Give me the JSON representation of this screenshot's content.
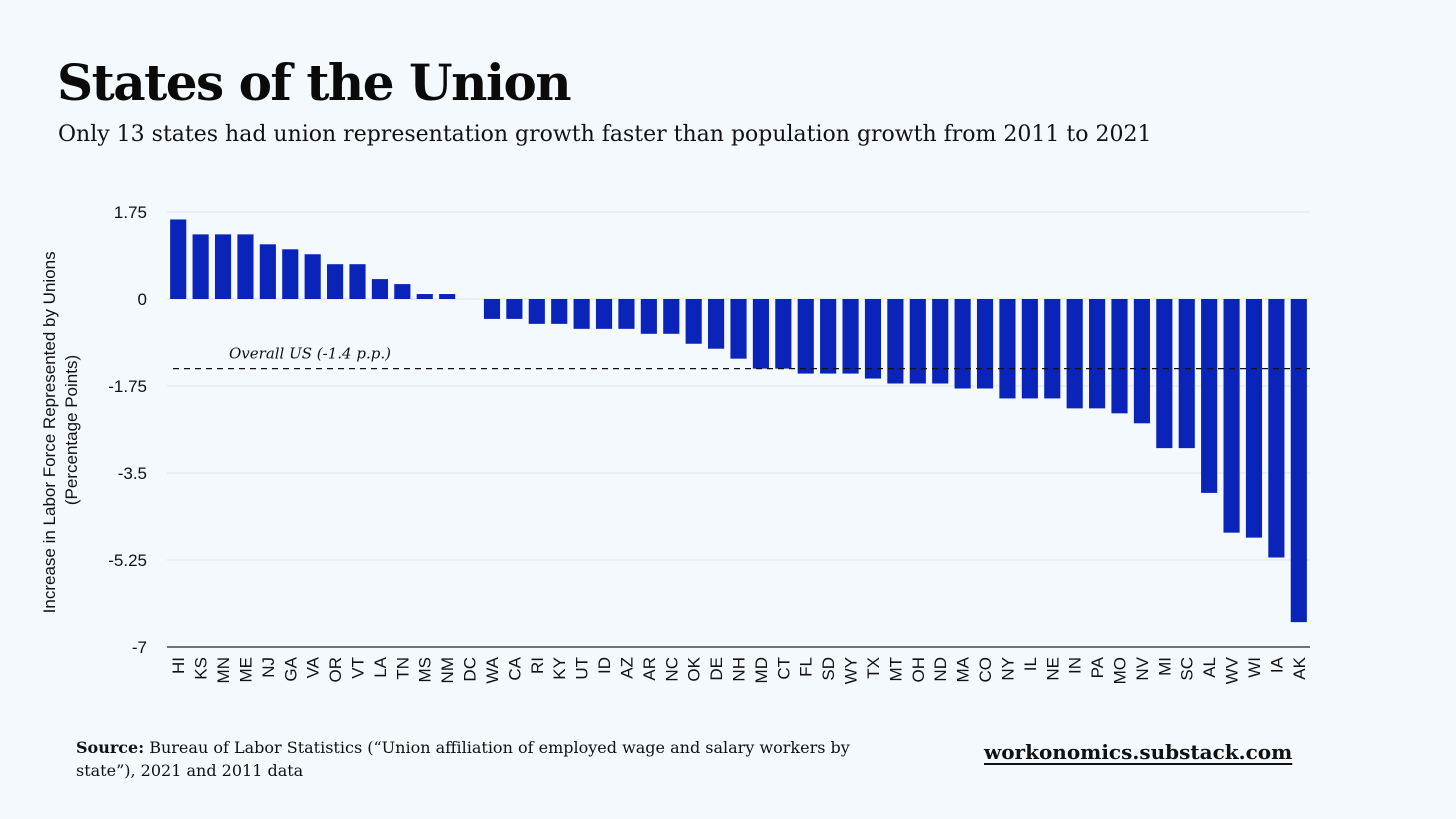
{
  "header": {
    "title": "States of the Union",
    "subtitle": "Only 13 states had union representation growth faster than population growth from 2011 to 2021"
  },
  "footer": {
    "source_label": "Source:",
    "source_text": "Bureau of Labor Statistics (“Union affiliation of employed wage and salary workers by state”), 2021 and 2011 data",
    "site": "workonomics.substack.com"
  },
  "colors": {
    "bar": "#0a23b8",
    "background": "#f4f9fe",
    "grid": "#dde3ea"
  },
  "chart_data": {
    "type": "bar",
    "ylabel": "Increase in Labor Force Represented by Unions (Percentage Points)",
    "ylabel_lines": [
      "Increase in Labor Force Represented by Unions",
      "(Percentage Points)"
    ],
    "ylim": [
      -7,
      1.75
    ],
    "yticks": [
      1.75,
      0,
      -1.75,
      -3.5,
      -5.25,
      -7
    ],
    "ytick_labels": [
      "1.75",
      "0",
      "-1.75",
      "-3.5",
      "-5.25",
      "-7"
    ],
    "grid": true,
    "legend": "none",
    "categories": [
      "HI",
      "KS",
      "MN",
      "ME",
      "NJ",
      "GA",
      "VA",
      "OR",
      "VT",
      "LA",
      "TN",
      "MS",
      "NM",
      "DC",
      "WA",
      "CA",
      "RI",
      "KY",
      "UT",
      "ID",
      "AZ",
      "AR",
      "NC",
      "OK",
      "DE",
      "NH",
      "MD",
      "CT",
      "FL",
      "SD",
      "WY",
      "TX",
      "MT",
      "OH",
      "ND",
      "MA",
      "CO",
      "NY",
      "IL",
      "NE",
      "IN",
      "PA",
      "MO",
      "NV",
      "MI",
      "SC",
      "AL",
      "WV",
      "WI",
      "IA",
      "AK"
    ],
    "values": [
      1.6,
      1.3,
      1.3,
      1.3,
      1.1,
      1.0,
      0.9,
      0.7,
      0.7,
      0.4,
      0.3,
      0.1,
      0.1,
      0.0,
      -0.4,
      -0.4,
      -0.5,
      -0.5,
      -0.6,
      -0.6,
      -0.6,
      -0.7,
      -0.7,
      -0.9,
      -1.0,
      -1.2,
      -1.4,
      -1.4,
      -1.5,
      -1.5,
      -1.5,
      -1.6,
      -1.7,
      -1.7,
      -1.7,
      -1.8,
      -1.8,
      -2.0,
      -2.0,
      -2.0,
      -2.2,
      -2.2,
      -2.3,
      -2.5,
      -3.0,
      -3.0,
      -3.9,
      -4.7,
      -4.8,
      -5.2,
      -6.5
    ],
    "reference_line": {
      "value": -1.4,
      "label": "Overall US  (-1.4 p.p.)"
    }
  }
}
